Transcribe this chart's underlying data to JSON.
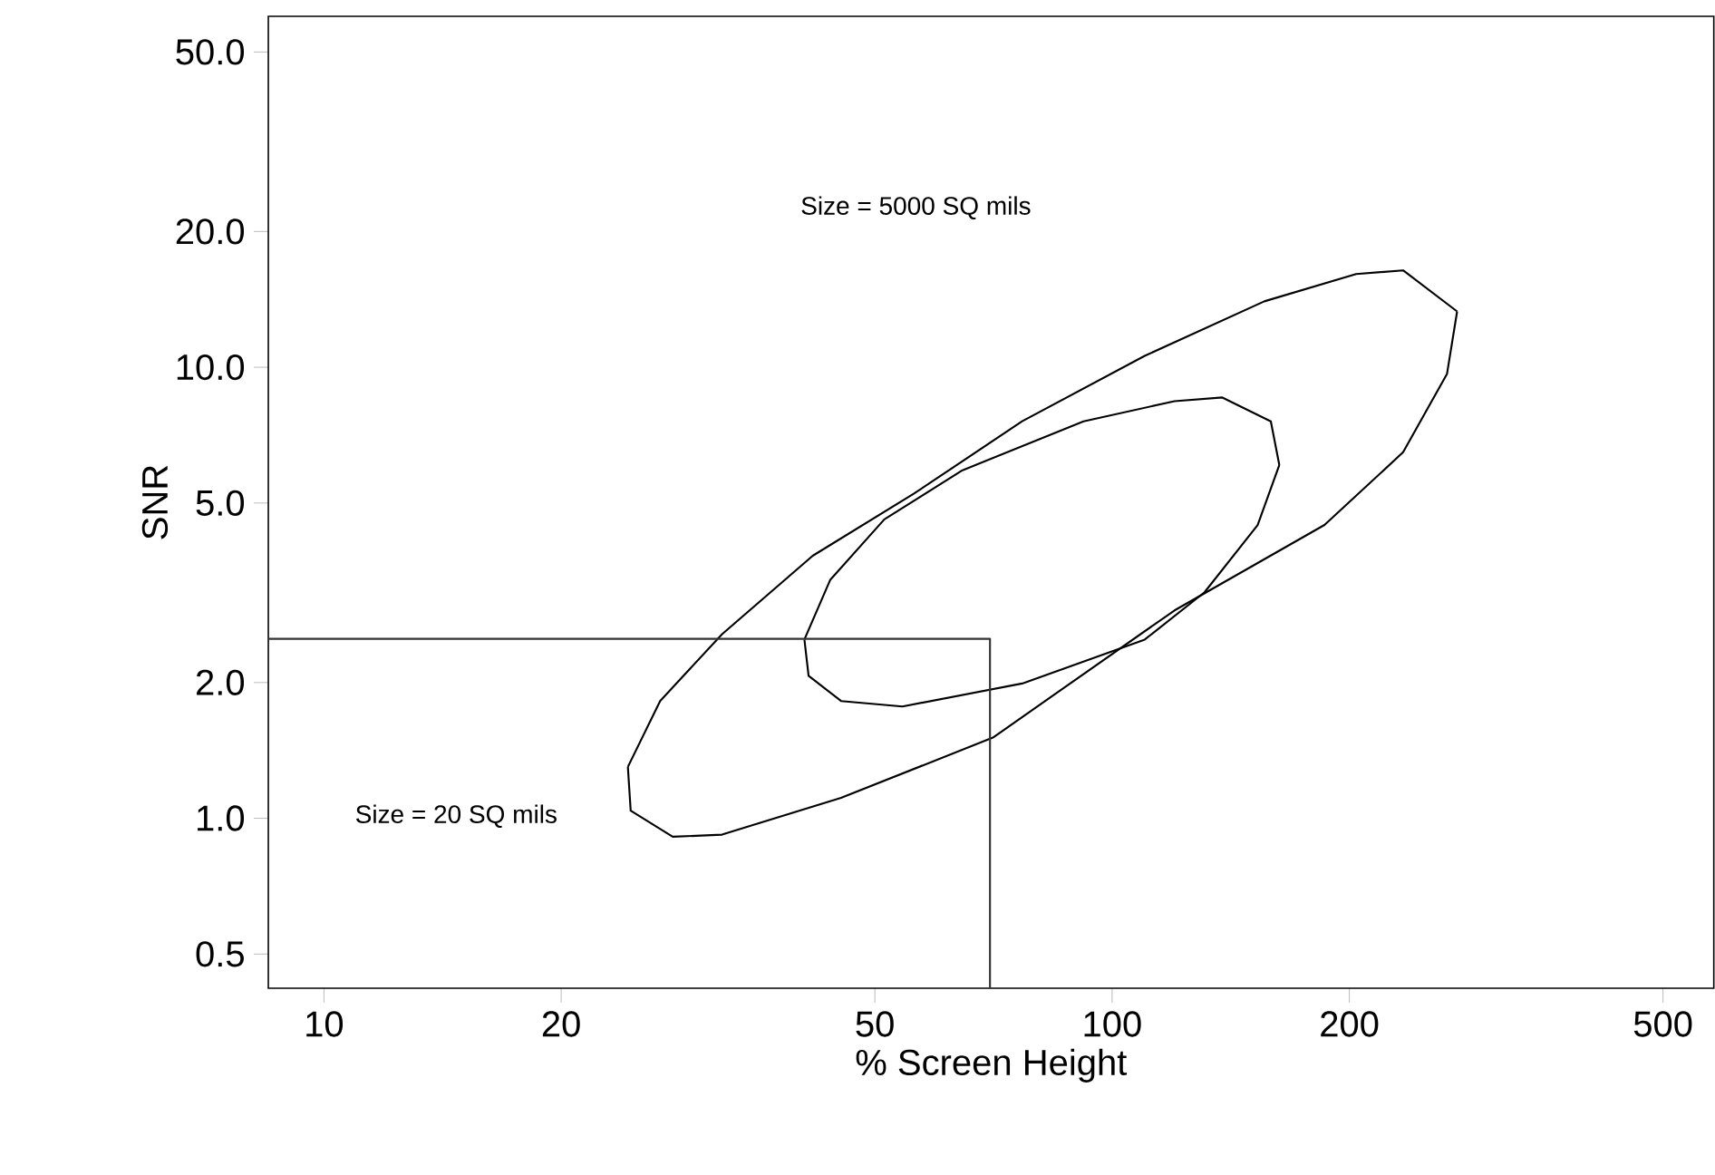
{
  "chart_data": {
    "type": "line",
    "xlabel": "% Screen Height",
    "ylabel": "SNR",
    "log": "xy",
    "xlim": [
      8.5,
      580
    ],
    "ylim": [
      0.42,
      60
    ],
    "xticks": [
      10,
      20,
      50,
      100,
      200,
      500
    ],
    "yticks": [
      {
        "value": 0.5,
        "label": "0.5"
      },
      {
        "value": 1,
        "label": "1.0"
      },
      {
        "value": 2,
        "label": "2.0"
      },
      {
        "value": 5,
        "label": "5.0"
      },
      {
        "value": 10,
        "label": "10.0"
      },
      {
        "value": 20,
        "label": "20.0"
      },
      {
        "value": 50,
        "label": "50.0"
      }
    ],
    "grid": false,
    "marker": "none",
    "line_style": "solid",
    "series": [
      {
        "color": "#000000",
        "x": [
          24.3,
          26.7,
          32.0,
          41.7,
          56.0,
          76.9,
          110,
          156,
          204,
          234,
          274
        ],
        "values": [
          1.3,
          1.82,
          2.56,
          3.82,
          5.24,
          7.59,
          10.6,
          14.0,
          16.1,
          16.4,
          13.3
        ]
      },
      {
        "color": "#000000",
        "x": [
          24.3,
          24.5,
          27.7,
          32.0,
          45.3,
          70.6,
          120,
          186,
          234,
          266,
          274
        ],
        "values": [
          1.3,
          1.04,
          0.91,
          0.92,
          1.11,
          1.51,
          2.89,
          4.47,
          6.48,
          9.66,
          13.3
        ]
      },
      {
        "color": "#000000",
        "x": [
          40.7,
          43.9,
          51.4,
          64.6,
          92.0,
          120,
          138,
          159,
          163
        ],
        "values": [
          2.49,
          3.38,
          4.6,
          5.91,
          7.59,
          8.41,
          8.57,
          7.59,
          6.07
        ]
      },
      {
        "color": "#000000",
        "x": [
          40.7,
          41.2,
          45.3,
          54.2,
          76.9,
          110,
          131,
          153,
          163
        ],
        "values": [
          2.49,
          2.07,
          1.82,
          1.77,
          1.99,
          2.49,
          3.17,
          4.47,
          6.07
        ]
      },
      {
        "color": "#333333",
        "x": [
          8.5,
          70,
          70
        ],
        "values": [
          2.5,
          2.5,
          0.42
        ]
      }
    ],
    "annotations": [
      "Size = 5000 SQ mils",
      "Size = 20 SQ mils"
    ]
  }
}
